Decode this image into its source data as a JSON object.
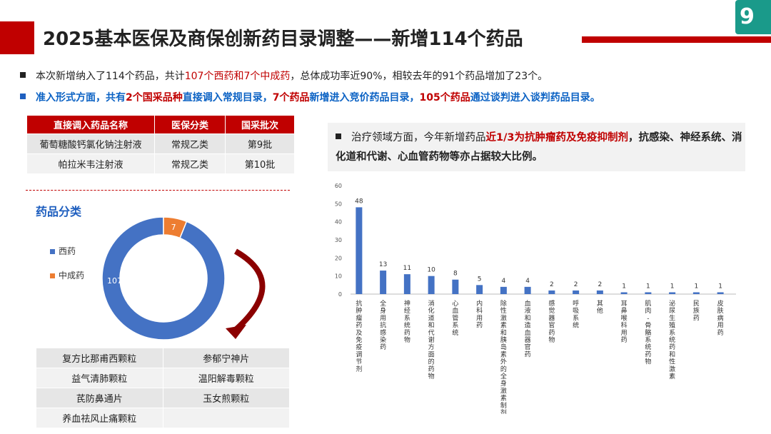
{
  "header": {
    "title": "2025基本医保及商保创新药目录调整——新增114个药品"
  },
  "bullets": {
    "b1_a": "本次新增纳入了114个药品，共计",
    "b1_red": "107个西药和7个中成药",
    "b1_b": "，总体成功率近90%，相较去年的91个药品增加了23个。",
    "b2_a": "准入形式方面，共有",
    "b2_red1": "2个国采品种",
    "b2_b": "直接调入常规目录，",
    "b2_red2": "7个药品",
    "b2_c": "新增进入竞价药品目录，",
    "b2_red3": "105个药品",
    "b2_d": "通过谈判进入谈判药品目录。"
  },
  "table": {
    "headers": [
      "直接调入药品名称",
      "医保分类",
      "国采批次"
    ],
    "rows": [
      [
        "葡萄糖酸钙氯化钠注射液",
        "常规乙类",
        "第9批"
      ],
      [
        "帕拉米韦注射液",
        "常规乙类",
        "第10批"
      ]
    ]
  },
  "therapy": {
    "t_a": "治疗领域方面，今年新增药品",
    "t_red": "近1/3为抗肿瘤药及免疫抑制剂",
    "t_b": "，抗感染、神经系统、消化道和代谢、心血管药物等亦占据较大比例。"
  },
  "chart_data": [
    {
      "type": "pie",
      "title": "药品分类",
      "slices": [
        {
          "name": "西药",
          "value": 107,
          "color": "#4472c4"
        },
        {
          "name": "中成药",
          "value": 7,
          "color": "#ed7d31"
        }
      ],
      "donut": true,
      "legend": "left"
    },
    {
      "type": "bar",
      "categories": [
        "抗肿瘤药及免疫调节剂",
        "全身用抗感染药",
        "神经系统药物",
        "消化道和代谢方面的药物",
        "心血管系统",
        "内科用药",
        "除性激素和胰岛素外的全身激素制剂",
        "血液和造血器官药",
        "感觉器官药物",
        "呼吸系统",
        "其他",
        "耳鼻喉科用药",
        "肌肉-骨骼系统药物",
        "泌尿生殖系统药和性激素",
        "民族药",
        "皮肤病用药"
      ],
      "values": [
        48,
        13,
        11,
        10,
        8,
        5,
        4,
        4,
        2,
        2,
        2,
        1,
        1,
        1,
        1,
        1
      ],
      "ylim": [
        0,
        60
      ],
      "yticks": [
        0,
        10,
        20,
        30,
        40,
        50,
        60
      ],
      "color": "#4472c4",
      "grid": false
    }
  ],
  "drug_grid": [
    [
      "复方比那甫西颗粒",
      "参郁宁神片"
    ],
    [
      "益气清肺颗粒",
      "温阳解毒颗粒"
    ],
    [
      "芪防鼻通片",
      "玉女煎颗粒"
    ],
    [
      "养血祛风止痛颗粒",
      ""
    ]
  ],
  "icons": {
    "logo": "brand-logo-icon"
  }
}
